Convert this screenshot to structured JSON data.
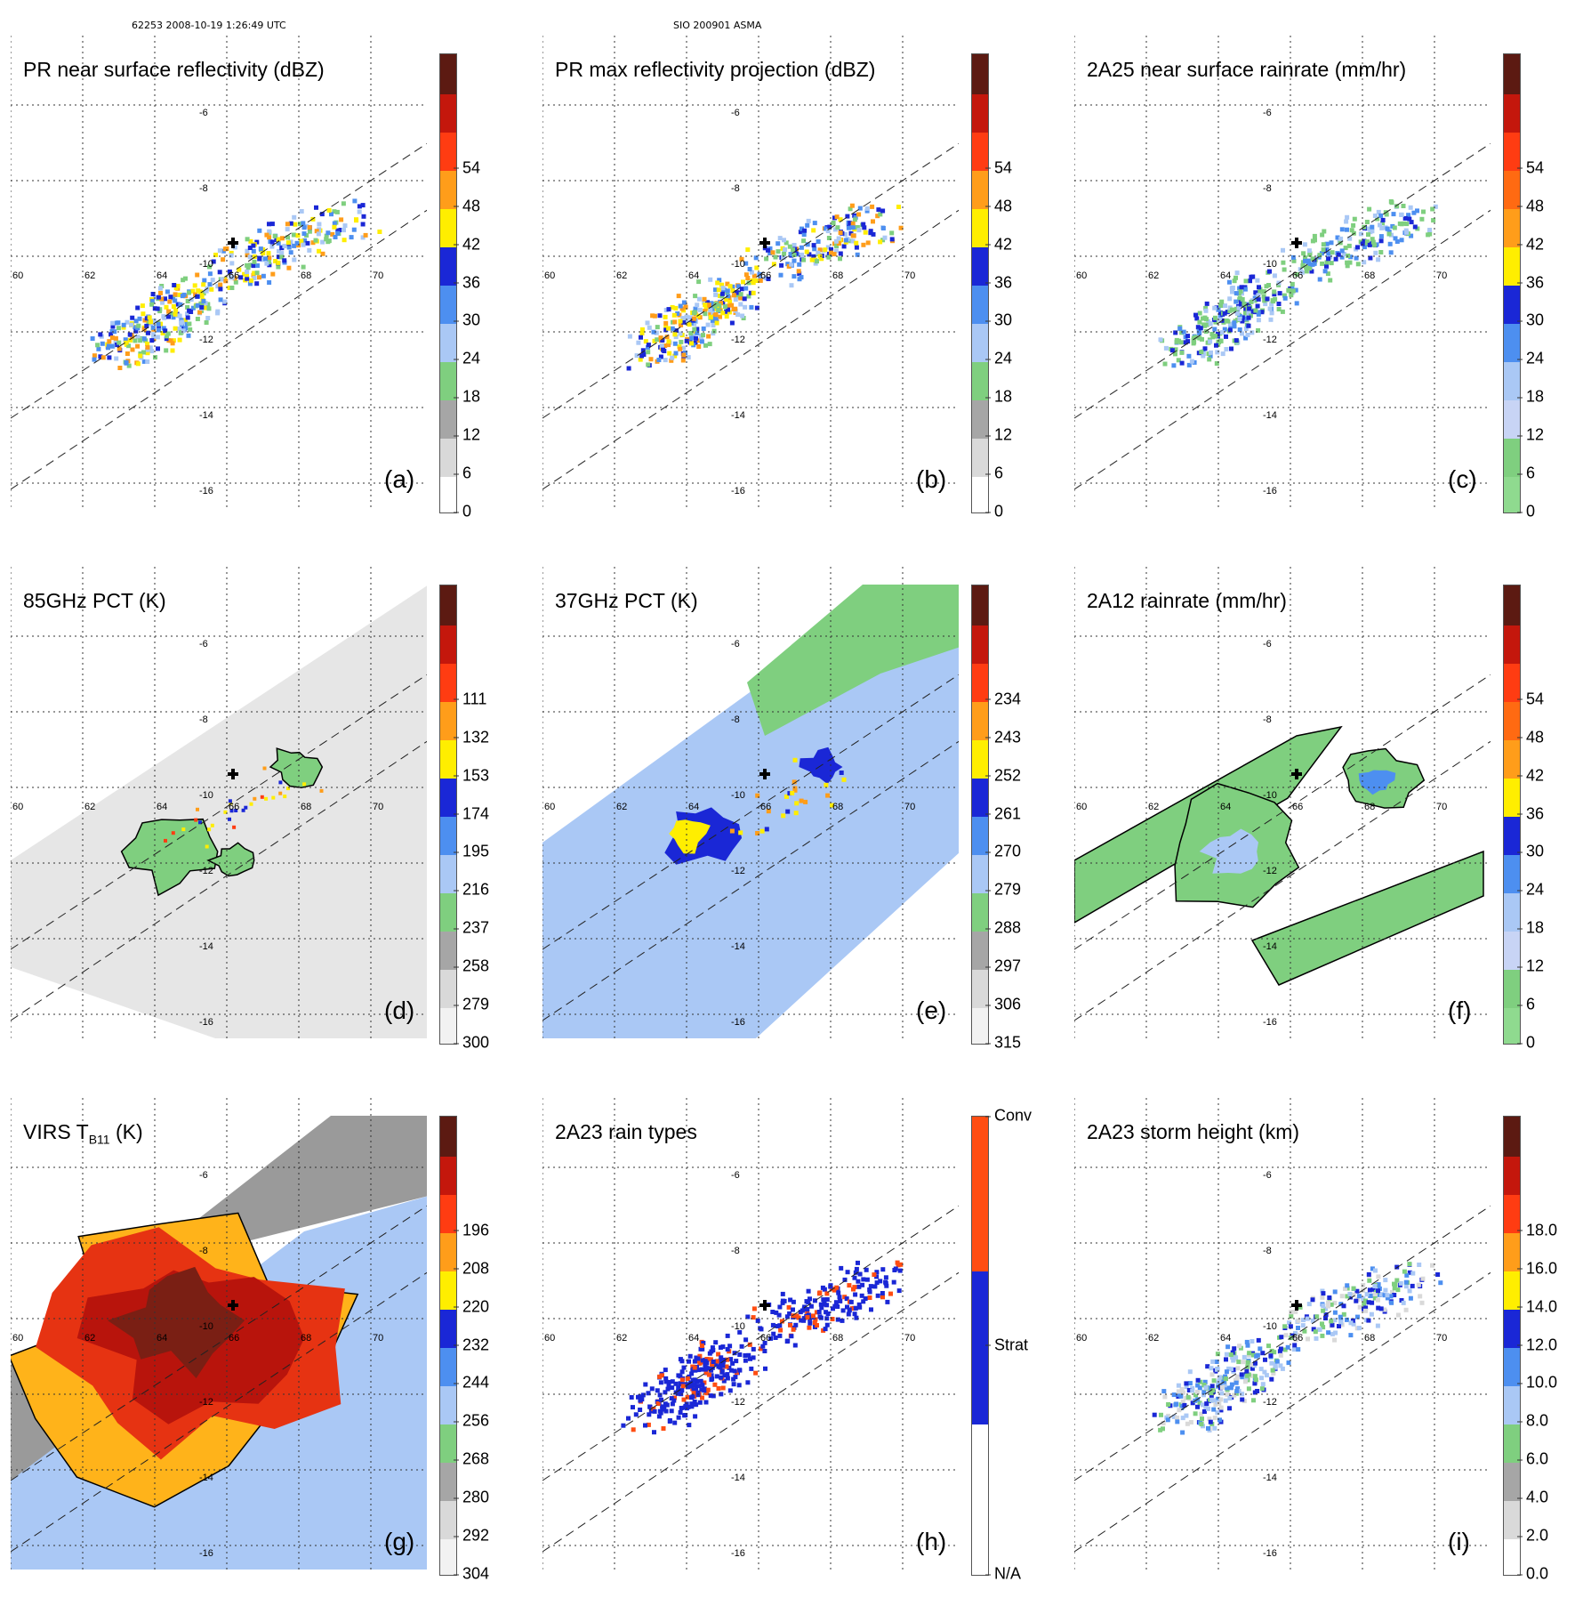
{
  "header": {
    "orbit_time": "62253 2008-10-19 1:26:49 UTC",
    "storm_id": "SIO 200901 ASMA"
  },
  "map": {
    "lon_labels": [
      "60",
      "62",
      "64",
      "66",
      "68",
      "70"
    ],
    "lat_labels": [
      "-6",
      "-8",
      "-10",
      "-12",
      "-14",
      "-16"
    ]
  },
  "panels": [
    {
      "id": "a",
      "title": "PR near surface reflectivity (dBZ)",
      "label": "(a)",
      "ticks": [
        "0",
        "6",
        "12",
        "18",
        "24",
        "30",
        "36",
        "42",
        "48",
        "54"
      ],
      "colors": [
        "#ffffff",
        "#d9d9d9",
        "#a6a6a6",
        "#7fcf7f",
        "#aac8f5",
        "#4d8ff0",
        "#1a27d6",
        "#ffee00",
        "#ff9d1a",
        "#ff3c12",
        "#c4170c",
        "#5c1a12"
      ],
      "cloud": "pr"
    },
    {
      "id": "b",
      "title": "PR max reflectivity projection (dBZ)",
      "label": "(b)",
      "ticks": [
        "0",
        "6",
        "12",
        "18",
        "24",
        "30",
        "36",
        "42",
        "48",
        "54"
      ],
      "colors": [
        "#ffffff",
        "#d9d9d9",
        "#a6a6a6",
        "#7fcf7f",
        "#aac8f5",
        "#4d8ff0",
        "#1a27d6",
        "#ffee00",
        "#ff9d1a",
        "#ff3c12",
        "#c4170c",
        "#5c1a12"
      ],
      "cloud": "pr"
    },
    {
      "id": "c",
      "title": "2A25 near surface rainrate (mm/hr)",
      "label": "(c)",
      "ticks": [
        "0",
        "6",
        "12",
        "18",
        "24",
        "30",
        "36",
        "42",
        "48",
        "54"
      ],
      "colors": [
        "#8fda8f",
        "#7fcf7f",
        "#c8d4f5",
        "#aac8f5",
        "#4d8ff0",
        "#1a27d6",
        "#ffee00",
        "#ff9d1a",
        "#ff6a12",
        "#ff3c12",
        "#c4170c",
        "#5c1a12"
      ],
      "cloud": "pr"
    },
    {
      "id": "d",
      "title": "85GHz PCT (K)",
      "label": "(d)",
      "ticks": [
        "300",
        "279",
        "258",
        "237",
        "216",
        "195",
        "174",
        "153",
        "132",
        "111"
      ],
      "colors": [
        "#f2f2f2",
        "#d9d9d9",
        "#a6a6a6",
        "#7fcf7f",
        "#aac8f5",
        "#4d8ff0",
        "#1a27d6",
        "#ffee00",
        "#ff9d1a",
        "#ff3c12",
        "#c4170c",
        "#5c1a12"
      ],
      "cloud": "pct85"
    },
    {
      "id": "e",
      "title": "37GHz PCT (K)",
      "label": "(e)",
      "ticks": [
        "315",
        "306",
        "297",
        "288",
        "279",
        "270",
        "261",
        "252",
        "243",
        "234"
      ],
      "colors": [
        "#f2f2f2",
        "#d9d9d9",
        "#a6a6a6",
        "#7fcf7f",
        "#aac8f5",
        "#4d8ff0",
        "#1a27d6",
        "#ffee00",
        "#ff9d1a",
        "#ff3c12",
        "#c4170c",
        "#5c1a12"
      ],
      "cloud": "pct37"
    },
    {
      "id": "f",
      "title": "2A12 rainrate (mm/hr)",
      "label": "(f)",
      "ticks": [
        "0",
        "6",
        "12",
        "18",
        "24",
        "30",
        "36",
        "42",
        "48",
        "54"
      ],
      "colors": [
        "#8fda8f",
        "#7fcf7f",
        "#c8d4f5",
        "#aac8f5",
        "#4d8ff0",
        "#1a27d6",
        "#ffee00",
        "#ff9d1a",
        "#ff6a12",
        "#ff3c12",
        "#c4170c",
        "#5c1a12"
      ],
      "cloud": "tmi"
    },
    {
      "id": "g",
      "title_main": "VIRS T",
      "title_sub": "B11",
      "title_unit": " (K)",
      "label": "(g)",
      "ticks": [
        "304",
        "292",
        "280",
        "268",
        "256",
        "244",
        "232",
        "220",
        "208",
        "196"
      ],
      "colors": [
        "#f2f2f2",
        "#d9d9d9",
        "#a6a6a6",
        "#7fcf7f",
        "#aac8f5",
        "#4d8ff0",
        "#1a27d6",
        "#ffee00",
        "#ff9d1a",
        "#ff3c12",
        "#c4170c",
        "#5c1a12"
      ],
      "cloud": "virs"
    },
    {
      "id": "h",
      "title": "2A23 rain types",
      "label": "(h)",
      "ticks": [
        "N/A",
        "Strat",
        "Conv"
      ],
      "colors": [
        "#ffffff",
        "#1a27d6",
        "#ff4d12"
      ],
      "cloud": "raintype"
    },
    {
      "id": "i",
      "title": "2A23 storm height (km)",
      "label": "(i)",
      "ticks": [
        "0.0",
        "2.0",
        "4.0",
        "6.0",
        "8.0",
        "10.0",
        "12.0",
        "14.0",
        "16.0",
        "18.0"
      ],
      "colors": [
        "#ffffff",
        "#d9d9d9",
        "#a6a6a6",
        "#7fcf7f",
        "#aac8f5",
        "#4d8ff0",
        "#1a27d6",
        "#ffee00",
        "#ff9d1a",
        "#ff3c12",
        "#c4170c",
        "#5c1a12"
      ],
      "cloud": "height"
    }
  ]
}
